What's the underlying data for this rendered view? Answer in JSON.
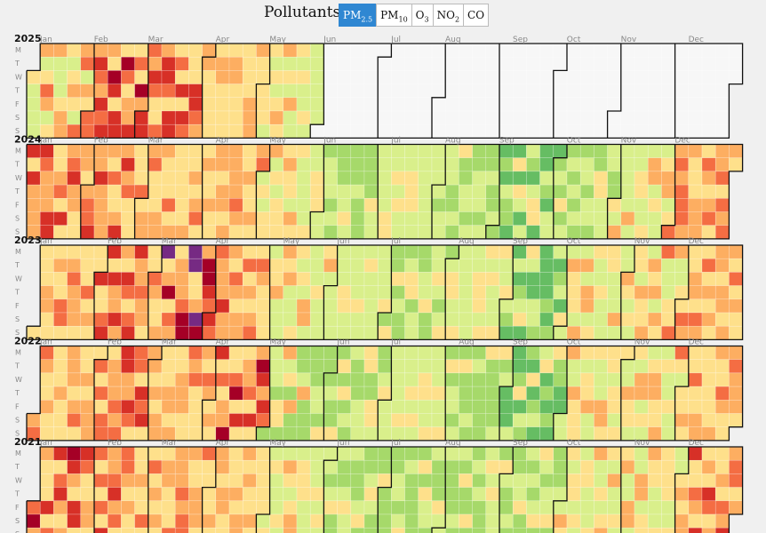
{
  "toolbar": {
    "label": "Pollutants:",
    "buttons": [
      {
        "main": "PM",
        "sub": "2.5",
        "active": true
      },
      {
        "main": "PM",
        "sub": "10",
        "active": false
      },
      {
        "main": "O",
        "sub": "3",
        "active": false
      },
      {
        "main": "NO",
        "sub": "2",
        "active": false
      },
      {
        "main": "CO",
        "sub": "",
        "active": false
      }
    ]
  },
  "colors": {
    "scale": [
      "#1a9850",
      "#66bd63",
      "#a6d96a",
      "#d9ef8b",
      "#fee08b",
      "#fdae61",
      "#f46d43",
      "#d73027",
      "#a50026",
      "#762a83"
    ],
    "empty": "#f7f7f7",
    "accent": "#2f87d2"
  },
  "chart_data": {
    "type": "heatmap",
    "title": "",
    "day_labels": [
      "M",
      "T",
      "W",
      "T",
      "F",
      "S",
      "S"
    ],
    "month_labels": [
      "Jan",
      "Feb",
      "Mar",
      "Apr",
      "May",
      "Jun",
      "Jul",
      "Aug",
      "Sep",
      "Oct",
      "Nov",
      "Dec"
    ],
    "years": [
      {
        "year": "2025",
        "last_date": "2025-05-31",
        "monthly_levels": [
          [
            3,
            6
          ],
          [
            4,
            8
          ],
          [
            4,
            8
          ],
          [
            4,
            5
          ],
          [
            3,
            5
          ],
          null,
          null,
          null,
          null,
          null,
          null,
          null
        ]
      },
      {
        "year": "2024",
        "last_date": "2024-12-31",
        "monthly_levels": [
          [
            4,
            7
          ],
          [
            4,
            7
          ],
          [
            4,
            6
          ],
          [
            4,
            6
          ],
          [
            3,
            5
          ],
          [
            2,
            4
          ],
          [
            3,
            4
          ],
          [
            2,
            4
          ],
          [
            1,
            4
          ],
          [
            2,
            4
          ],
          [
            3,
            5
          ],
          [
            4,
            6
          ]
        ]
      },
      {
        "year": "2023",
        "last_date": "2023-12-31",
        "monthly_levels": [
          [
            4,
            6
          ],
          [
            4,
            8
          ],
          [
            4,
            9
          ],
          [
            4,
            7
          ],
          [
            3,
            5
          ],
          [
            3,
            4
          ],
          [
            2,
            4
          ],
          [
            3,
            4
          ],
          [
            1,
            4
          ],
          [
            3,
            5
          ],
          [
            3,
            6
          ],
          [
            4,
            6
          ]
        ]
      },
      {
        "year": "2022",
        "last_date": "2022-12-31",
        "monthly_levels": [
          [
            4,
            6
          ],
          [
            4,
            7
          ],
          [
            4,
            7
          ],
          [
            4,
            8
          ],
          [
            2,
            5
          ],
          [
            2,
            4
          ],
          [
            3,
            4
          ],
          [
            2,
            4
          ],
          [
            1,
            4
          ],
          [
            3,
            6
          ],
          [
            3,
            6
          ],
          [
            4,
            6
          ]
        ]
      },
      {
        "year": "2021",
        "last_date": "2021-12-31",
        "monthly_levels": [
          [
            4,
            8
          ],
          [
            4,
            7
          ],
          [
            4,
            6
          ],
          [
            4,
            5
          ],
          [
            3,
            5
          ],
          [
            2,
            4
          ],
          [
            2,
            4
          ],
          [
            2,
            4
          ],
          [
            2,
            4
          ],
          [
            3,
            5
          ],
          [
            3,
            5
          ],
          [
            4,
            7
          ]
        ]
      }
    ],
    "legend": "none",
    "grid": true
  }
}
